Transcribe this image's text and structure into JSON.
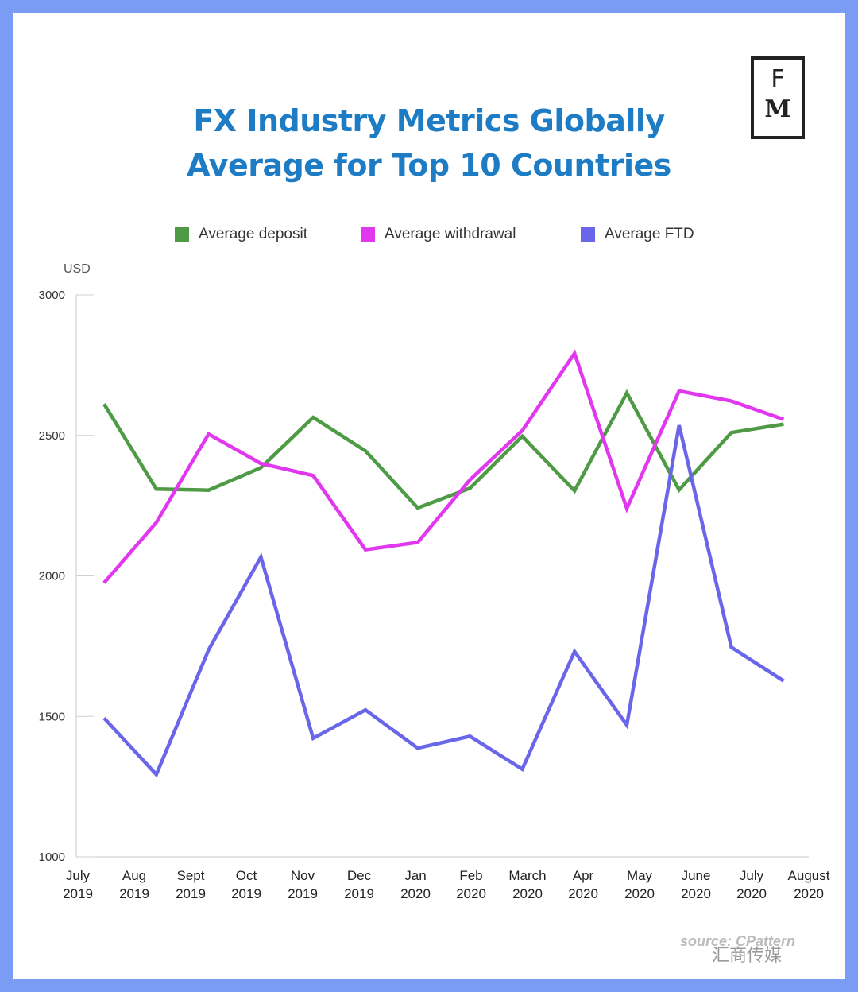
{
  "logo": {
    "top": "F",
    "bottom": "M"
  },
  "watermark": {
    "source": "source: CPattern",
    "wechat": "汇商传媒"
  },
  "chart_data": {
    "type": "line",
    "title": "FX Industry Metrics Globally",
    "subtitle": "Average for Top 10 Countries",
    "ylabel": "USD",
    "ylim": [
      1000,
      3000
    ],
    "yticks": [
      "3000",
      "2500",
      "2000",
      "1500",
      "1000"
    ],
    "categories": [
      [
        "July",
        "2019"
      ],
      [
        "Aug",
        "2019"
      ],
      [
        "Sept",
        "2019"
      ],
      [
        "Oct",
        "2019"
      ],
      [
        "Nov",
        "2019"
      ],
      [
        "Dec",
        "2019"
      ],
      [
        "Jan",
        "2020"
      ],
      [
        "Feb",
        "2020"
      ],
      [
        "March",
        "2020"
      ],
      [
        "Apr",
        "2020"
      ],
      [
        "May",
        "2020"
      ],
      [
        "June",
        "2020"
      ],
      [
        "July",
        "2020"
      ],
      [
        "August",
        "2020"
      ]
    ],
    "series": [
      {
        "name": "Average deposit",
        "color": "#4f9a45",
        "values": [
          2612,
          2309,
          2305,
          2385,
          2564,
          2445,
          2242,
          2312,
          2497,
          2303,
          2651,
          2306,
          2510,
          2540
        ]
      },
      {
        "name": "Average withdrawal",
        "color": "#e138ef",
        "values": [
          1975,
          2190,
          2505,
          2400,
          2357,
          2093,
          2119,
          2342,
          2517,
          2792,
          2240,
          2658,
          2622,
          2557
        ]
      },
      {
        "name": "Average FTD",
        "color": "#6a66ea",
        "values": [
          1494,
          1293,
          1737,
          2067,
          1422,
          1523,
          1387,
          1429,
          1312,
          1731,
          1469,
          2536,
          1746,
          1626
        ]
      }
    ],
    "grid": false,
    "legend_position": "top"
  }
}
